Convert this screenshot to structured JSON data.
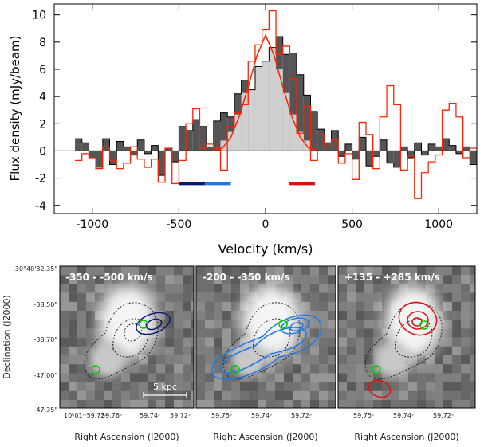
{
  "chart_data": [
    {
      "type": "bar",
      "subtype": "step-histogram",
      "xlabel": "Velocity (km/s)",
      "ylabel": "Flux density (mJy/beam)",
      "xlim": [
        -1220,
        1220
      ],
      "ylim": [
        -4.6,
        10.8
      ],
      "xticks": [
        -1000,
        -500,
        0,
        500,
        1000
      ],
      "yticks": [
        -4,
        -2,
        0,
        2,
        4,
        6,
        8,
        10
      ],
      "bin_width": 40,
      "bin_start": -1100,
      "series": [
        {
          "values": [
            0.9,
            0.6,
            -0.5,
            -1.2,
            0.9,
            -1.0,
            0.7,
            0.3,
            -0.3,
            0.8,
            -0.2,
            0.4,
            -1.8,
            0.2,
            -0.8,
            1.8,
            1.5,
            2.3,
            1.8,
            0.3,
            2.2,
            2.8,
            2.5,
            4.2,
            5.2,
            4.5,
            6.2,
            6.6,
            7.6,
            8.4,
            7.1,
            7.2,
            5.6,
            4.1,
            2.9,
            1.6,
            0.6,
            1.5,
            -0.4,
            0.5,
            -0.6,
            1.0,
            -1.1,
            -0.4,
            0.8,
            -0.9,
            -1.2,
            0.3,
            -0.5,
            0.6,
            -0.3,
            0.5,
            0.3,
            0.9,
            0.4,
            -0.2,
            0.3,
            -1.0
          ]
        },
        {
          "values": [
            -0.7,
            -0.2,
            -0.5,
            -1.3,
            0.3,
            -0.7,
            -1.3,
            -0.9,
            0.3,
            -0.6,
            -1.2,
            -0.6,
            -2.3,
            0.2,
            -2.4,
            -0.7,
            2.0,
            3.1,
            0.2,
            0.5,
            0.2,
            -1.4,
            1.8,
            2.8,
            3.4,
            6.6,
            7.8,
            8.9,
            10.3,
            7.1,
            7.7,
            5.3,
            1.3,
            3.3,
            -0.7,
            1.2,
            0.3,
            0.8,
            -0.9,
            -0.2,
            -2.1,
            2.1,
            1.2,
            -1.3,
            2.5,
            4.8,
            3.4,
            -1.4,
            -0.4,
            -3.5,
            -1.6,
            -0.8,
            -0.3,
            3.0,
            3.5,
            2.5,
            -0.5,
            0.2
          ]
        }
      ],
      "fit_curve": {
        "color": "#ff2200",
        "x": [
          -1000,
          -300,
          -250,
          -200,
          -150,
          -100,
          -50,
          0,
          50,
          100,
          150,
          200,
          250,
          300
        ],
        "y": [
          0,
          0.05,
          0.2,
          1.0,
          2.6,
          4.7,
          7.0,
          8.5,
          7.0,
          4.7,
          2.6,
          1.0,
          0.2,
          0.05
        ]
      },
      "velocity_bars": [
        {
          "x": [
            -500,
            -350
          ],
          "color": "#0a1a6b"
        },
        {
          "x": [
            -350,
            -200
          ],
          "color": "#1e78e6"
        },
        {
          "x": [
            135,
            285
          ],
          "color": "#e01010"
        }
      ]
    },
    {
      "type": "heatmap",
      "xlabel": "Right Ascension (J2000)",
      "ylabel": "Declination (J2000)",
      "panels": [
        {
          "label": "-350 - -500 km/s",
          "contour_color": "#0a1a6b"
        },
        {
          "label": "-200 - -350 km/s",
          "contour_color": "#1e78e6"
        },
        {
          "label": "+135 - +285 km/s",
          "contour_color": "#e01010"
        }
      ],
      "dec_ticks": [
        "-30°40'32.35\"",
        "-38.50\"",
        "-38.70\"",
        "-47.00\"",
        "-47.35\""
      ],
      "ra_ticks": [
        "10ʰ01ᵐ59.72ˢ",
        "59.76ˢ",
        "59.74ˢ",
        "59.72ˢ",
        "59.75ˢ",
        "59.74ˢ",
        "59.72ˢ",
        "59.75ˢ",
        "59.74ˢ",
        "59.72ˢ"
      ],
      "scalebar_label": "5 kpc"
    }
  ],
  "colors": {
    "dark_hist": "#555555",
    "light_fill": "#d0d0d0",
    "red_line": "#ff2200",
    "marker": "#00cc00"
  }
}
